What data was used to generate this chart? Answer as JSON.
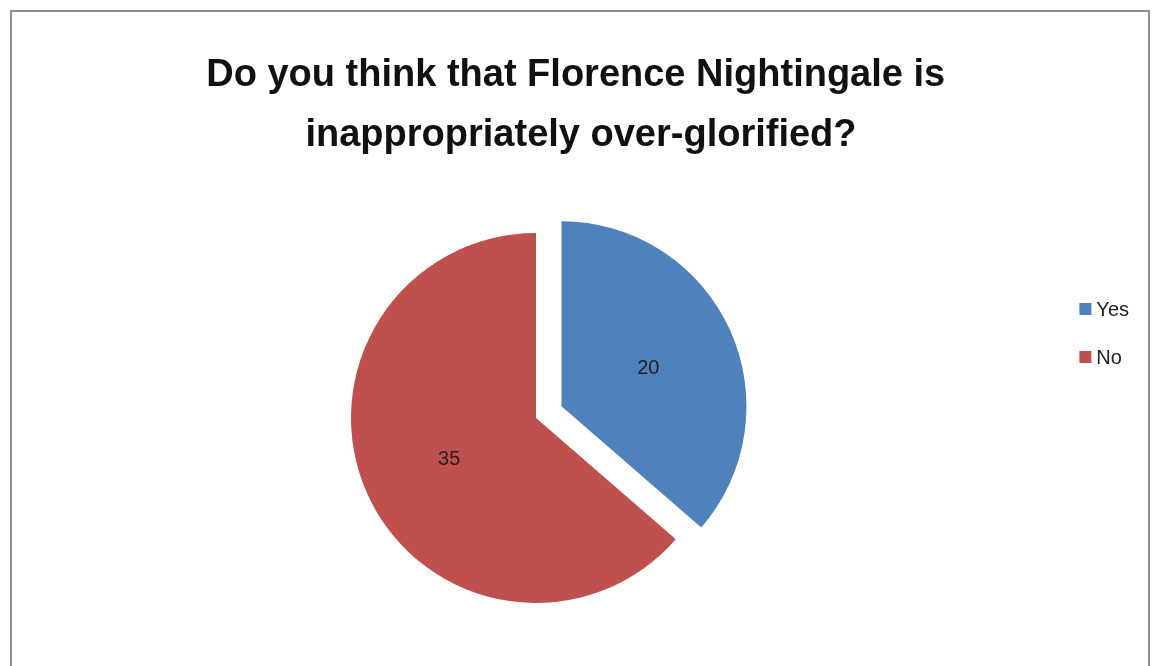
{
  "chart_data": {
    "type": "pie",
    "title": "Do you think that Florence Nightingale is inappropriately over-glorified?",
    "categories": [
      "Yes",
      "No"
    ],
    "values": [
      20,
      35
    ],
    "colors": [
      "#4f81bd",
      "#c0504d"
    ],
    "data_labels": true,
    "legend": "right"
  }
}
